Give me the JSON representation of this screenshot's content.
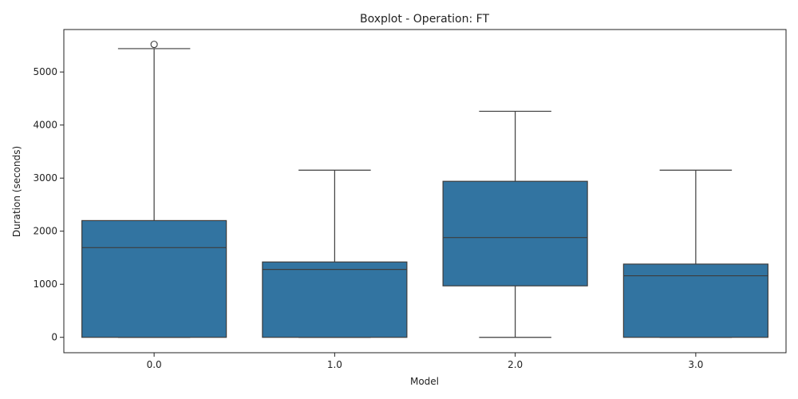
{
  "chart_data": {
    "type": "boxplot",
    "title": "Boxplot - Operation: FT",
    "xlabel": "Model",
    "ylabel": "Duration (seconds)",
    "categories": [
      "0.0",
      "1.0",
      "2.0",
      "3.0"
    ],
    "ylim": [
      -290,
      5800
    ],
    "yticks": [
      0,
      1000,
      2000,
      3000,
      4000,
      5000
    ],
    "grid": false,
    "box_color": "#3274a1",
    "line_color": "#3d3d3d",
    "boxes": [
      {
        "category": "0.0",
        "min": 0,
        "q1": 0,
        "median": 1690,
        "q3": 2200,
        "max": 5440,
        "outliers": [
          5520
        ]
      },
      {
        "category": "1.0",
        "min": 0,
        "q1": 0,
        "median": 1280,
        "q3": 1420,
        "max": 3150,
        "outliers": []
      },
      {
        "category": "2.0",
        "min": 0,
        "q1": 970,
        "median": 1880,
        "q3": 2940,
        "max": 4260,
        "outliers": []
      },
      {
        "category": "3.0",
        "min": 0,
        "q1": 0,
        "median": 1160,
        "q3": 1380,
        "max": 3150,
        "outliers": []
      }
    ]
  }
}
